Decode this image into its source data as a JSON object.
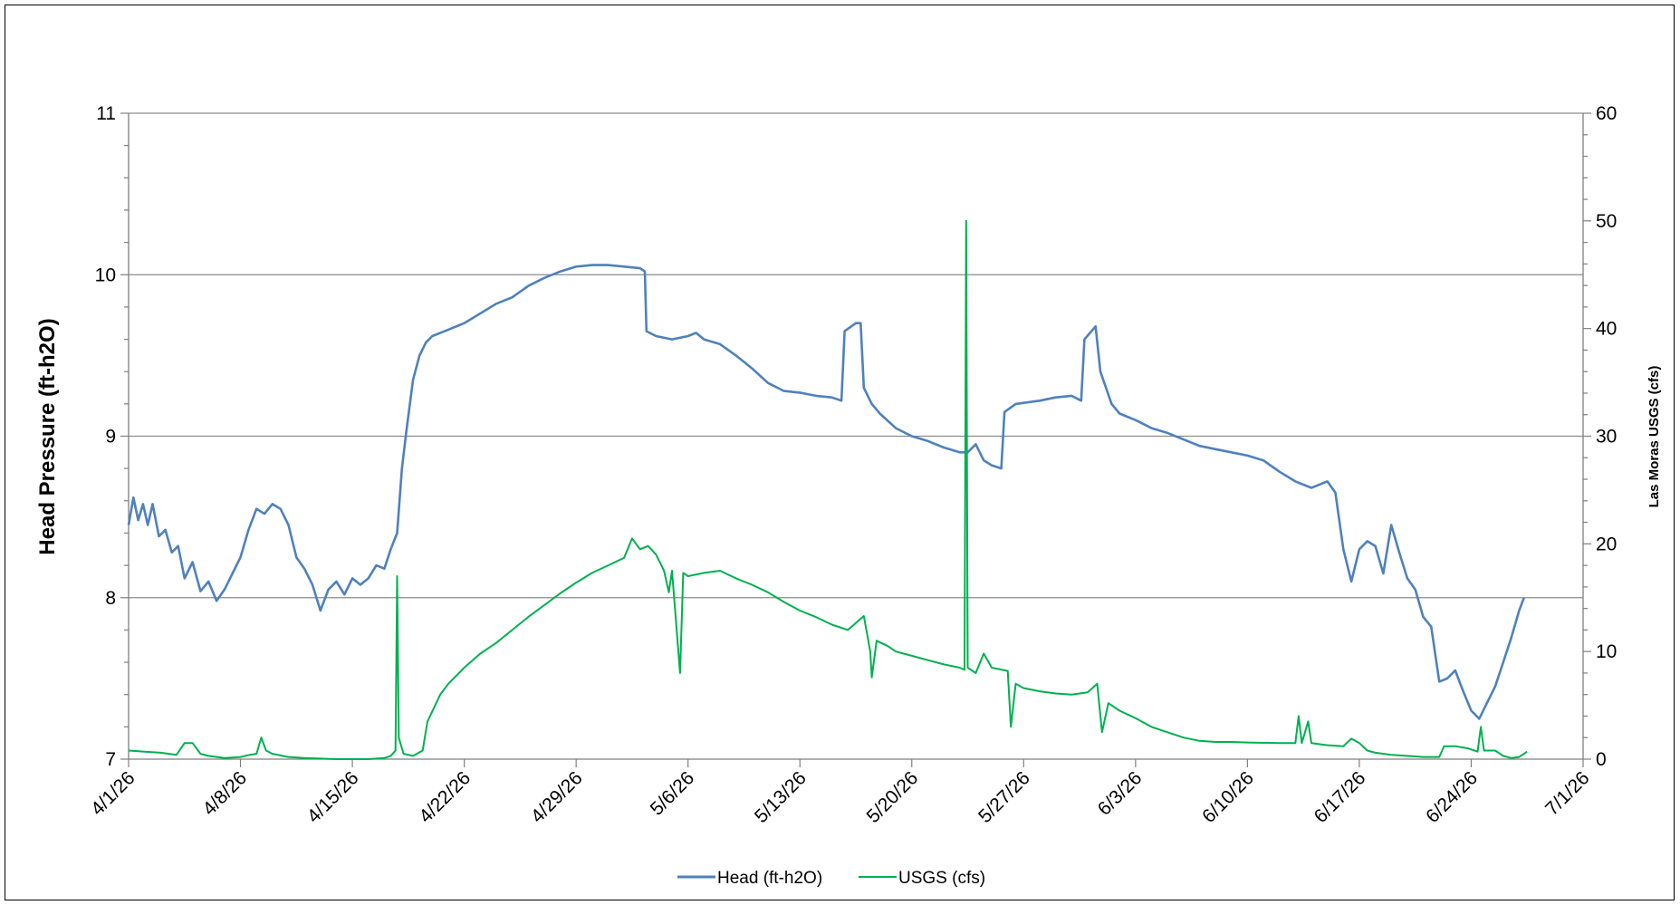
{
  "chart_data": {
    "type": "line",
    "title": "",
    "xlabel": "",
    "ylabel": "Head Pressure (ft-h2O)",
    "y2label": "Las Moras USGS (cfs)",
    "x_ticks": [
      "4/1/26",
      "4/8/26",
      "4/15/26",
      "4/22/26",
      "4/29/26",
      "5/6/26",
      "5/13/26",
      "5/20/26",
      "5/27/26",
      "6/3/26",
      "6/10/26",
      "6/17/26",
      "6/24/26",
      "7/1/26"
    ],
    "xlim_days": [
      0,
      91
    ],
    "ylim": [
      7,
      11
    ],
    "y_ticks": [
      "7",
      "8",
      "9",
      "10",
      "11"
    ],
    "y2lim": [
      0,
      60
    ],
    "y2_ticks": [
      "0",
      "10",
      "20",
      "30",
      "40",
      "50",
      "60"
    ],
    "grid": "horizontal major",
    "legend_position": "bottom",
    "series": [
      {
        "name": "Head (ft-h2O)",
        "axis": "left",
        "color": "#4F81BD",
        "points": [
          [
            0.0,
            8.45
          ],
          [
            0.3,
            8.62
          ],
          [
            0.6,
            8.48
          ],
          [
            0.9,
            8.58
          ],
          [
            1.2,
            8.45
          ],
          [
            1.5,
            8.58
          ],
          [
            1.9,
            8.38
          ],
          [
            2.3,
            8.42
          ],
          [
            2.7,
            8.28
          ],
          [
            3.1,
            8.32
          ],
          [
            3.5,
            8.12
          ],
          [
            4.0,
            8.22
          ],
          [
            4.5,
            8.04
          ],
          [
            5.0,
            8.1
          ],
          [
            5.5,
            7.98
          ],
          [
            6.0,
            8.05
          ],
          [
            6.5,
            8.15
          ],
          [
            7.0,
            8.25
          ],
          [
            7.5,
            8.42
          ],
          [
            8.0,
            8.55
          ],
          [
            8.5,
            8.52
          ],
          [
            9.0,
            8.58
          ],
          [
            9.5,
            8.55
          ],
          [
            10.0,
            8.45
          ],
          [
            10.5,
            8.25
          ],
          [
            11.0,
            8.18
          ],
          [
            11.5,
            8.08
          ],
          [
            12.0,
            7.92
          ],
          [
            12.5,
            8.05
          ],
          [
            13.0,
            8.1
          ],
          [
            13.5,
            8.02
          ],
          [
            14.0,
            8.12
          ],
          [
            14.5,
            8.08
          ],
          [
            15.0,
            8.12
          ],
          [
            15.5,
            8.2
          ],
          [
            16.0,
            8.18
          ],
          [
            16.4,
            8.3
          ],
          [
            16.8,
            8.4
          ],
          [
            17.1,
            8.8
          ],
          [
            17.4,
            9.05
          ],
          [
            17.8,
            9.35
          ],
          [
            18.2,
            9.5
          ],
          [
            18.6,
            9.58
          ],
          [
            19.0,
            9.62
          ],
          [
            20.0,
            9.66
          ],
          [
            21.0,
            9.7
          ],
          [
            22.0,
            9.76
          ],
          [
            23.0,
            9.82
          ],
          [
            24.0,
            9.86
          ],
          [
            25.0,
            9.93
          ],
          [
            26.0,
            9.98
          ],
          [
            27.0,
            10.02
          ],
          [
            28.0,
            10.05
          ],
          [
            29.0,
            10.06
          ],
          [
            30.0,
            10.06
          ],
          [
            31.0,
            10.05
          ],
          [
            32.0,
            10.04
          ],
          [
            32.3,
            10.02
          ],
          [
            32.4,
            9.65
          ],
          [
            33.0,
            9.62
          ],
          [
            34.0,
            9.6
          ],
          [
            35.0,
            9.62
          ],
          [
            35.5,
            9.64
          ],
          [
            36.0,
            9.6
          ],
          [
            37.0,
            9.57
          ],
          [
            38.0,
            9.5
          ],
          [
            39.0,
            9.42
          ],
          [
            40.0,
            9.33
          ],
          [
            41.0,
            9.28
          ],
          [
            42.0,
            9.27
          ],
          [
            43.0,
            9.25
          ],
          [
            44.0,
            9.24
          ],
          [
            44.6,
            9.22
          ],
          [
            44.8,
            9.65
          ],
          [
            45.5,
            9.7
          ],
          [
            45.8,
            9.7
          ],
          [
            46.0,
            9.3
          ],
          [
            46.5,
            9.2
          ],
          [
            47.0,
            9.14
          ],
          [
            48.0,
            9.05
          ],
          [
            49.0,
            9.0
          ],
          [
            50.0,
            8.97
          ],
          [
            51.0,
            8.93
          ],
          [
            52.0,
            8.9
          ],
          [
            52.5,
            8.9
          ],
          [
            53.0,
            8.95
          ],
          [
            53.5,
            8.85
          ],
          [
            54.0,
            8.82
          ],
          [
            54.6,
            8.8
          ],
          [
            54.8,
            9.15
          ],
          [
            55.5,
            9.2
          ],
          [
            57.0,
            9.22
          ],
          [
            58.0,
            9.24
          ],
          [
            59.0,
            9.25
          ],
          [
            59.6,
            9.22
          ],
          [
            59.8,
            9.6
          ],
          [
            60.5,
            9.68
          ],
          [
            60.8,
            9.4
          ],
          [
            61.5,
            9.2
          ],
          [
            62.0,
            9.14
          ],
          [
            63.0,
            9.1
          ],
          [
            64.0,
            9.05
          ],
          [
            65.0,
            9.02
          ],
          [
            66.0,
            8.98
          ],
          [
            67.0,
            8.94
          ],
          [
            68.0,
            8.92
          ],
          [
            69.0,
            8.9
          ],
          [
            70.0,
            8.88
          ],
          [
            71.0,
            8.85
          ],
          [
            72.0,
            8.78
          ],
          [
            73.0,
            8.72
          ],
          [
            74.0,
            8.68
          ],
          [
            75.0,
            8.72
          ],
          [
            75.5,
            8.65
          ],
          [
            76.0,
            8.3
          ],
          [
            76.5,
            8.1
          ],
          [
            77.0,
            8.3
          ],
          [
            77.5,
            8.35
          ],
          [
            78.0,
            8.32
          ],
          [
            78.5,
            8.15
          ],
          [
            79.0,
            8.45
          ],
          [
            79.5,
            8.28
          ],
          [
            80.0,
            8.12
          ],
          [
            80.5,
            8.05
          ],
          [
            81.0,
            7.88
          ],
          [
            81.5,
            7.82
          ],
          [
            82.0,
            7.48
          ],
          [
            82.5,
            7.5
          ],
          [
            83.0,
            7.55
          ],
          [
            83.5,
            7.42
          ],
          [
            84.0,
            7.3
          ],
          [
            84.5,
            7.25
          ],
          [
            85.0,
            7.35
          ],
          [
            85.5,
            7.45
          ],
          [
            86.0,
            7.6
          ],
          [
            86.5,
            7.75
          ],
          [
            87.0,
            7.92
          ],
          [
            87.3,
            8.0
          ]
        ]
      },
      {
        "name": "USGS (cfs)",
        "axis": "right",
        "color": "#00B050",
        "points": [
          [
            0.0,
            0.8
          ],
          [
            1.0,
            0.7
          ],
          [
            2.0,
            0.6
          ],
          [
            3.0,
            0.4
          ],
          [
            3.5,
            1.5
          ],
          [
            4.0,
            1.5
          ],
          [
            4.5,
            0.5
          ],
          [
            5.0,
            0.3
          ],
          [
            6.0,
            0.1
          ],
          [
            7.0,
            0.2
          ],
          [
            7.6,
            0.4
          ],
          [
            8.0,
            0.5
          ],
          [
            8.3,
            2.0
          ],
          [
            8.6,
            0.8
          ],
          [
            9.0,
            0.5
          ],
          [
            10.0,
            0.2
          ],
          [
            11.0,
            0.1
          ],
          [
            12.0,
            0.05
          ],
          [
            13.0,
            0.0
          ],
          [
            15.0,
            0.0
          ],
          [
            16.0,
            0.1
          ],
          [
            16.4,
            0.3
          ],
          [
            16.7,
            0.8
          ],
          [
            16.8,
            17.0
          ],
          [
            16.9,
            2.0
          ],
          [
            17.2,
            0.5
          ],
          [
            17.8,
            0.3
          ],
          [
            18.4,
            0.8
          ],
          [
            18.7,
            3.5
          ],
          [
            19.5,
            6.0
          ],
          [
            20.0,
            7.0
          ],
          [
            21.0,
            8.5
          ],
          [
            22.0,
            9.8
          ],
          [
            23.0,
            10.8
          ],
          [
            24.0,
            12.0
          ],
          [
            25.0,
            13.2
          ],
          [
            26.0,
            14.3
          ],
          [
            27.0,
            15.4
          ],
          [
            28.0,
            16.4
          ],
          [
            29.0,
            17.3
          ],
          [
            30.0,
            18.0
          ],
          [
            31.0,
            18.7
          ],
          [
            31.5,
            20.5
          ],
          [
            32.0,
            19.5
          ],
          [
            32.5,
            19.8
          ],
          [
            33.0,
            19.0
          ],
          [
            33.5,
            17.5
          ],
          [
            33.8,
            15.5
          ],
          [
            34.0,
            17.5
          ],
          [
            34.5,
            8.0
          ],
          [
            34.7,
            17.3
          ],
          [
            35.0,
            17.0
          ],
          [
            36.0,
            17.3
          ],
          [
            37.0,
            17.5
          ],
          [
            38.0,
            16.8
          ],
          [
            39.0,
            16.2
          ],
          [
            40.0,
            15.5
          ],
          [
            41.0,
            14.6
          ],
          [
            42.0,
            13.8
          ],
          [
            43.0,
            13.2
          ],
          [
            44.0,
            12.5
          ],
          [
            45.0,
            12.0
          ],
          [
            46.0,
            13.3
          ],
          [
            46.4,
            10.0
          ],
          [
            46.5,
            7.6
          ],
          [
            46.8,
            11.0
          ],
          [
            47.5,
            10.5
          ],
          [
            48.0,
            10.0
          ],
          [
            49.0,
            9.6
          ],
          [
            50.0,
            9.2
          ],
          [
            51.0,
            8.8
          ],
          [
            52.0,
            8.5
          ],
          [
            52.3,
            8.3
          ],
          [
            52.4,
            50.0
          ],
          [
            52.5,
            8.5
          ],
          [
            53.0,
            8.0
          ],
          [
            53.5,
            9.8
          ],
          [
            54.0,
            8.5
          ],
          [
            55.0,
            8.2
          ],
          [
            55.2,
            3.0
          ],
          [
            55.5,
            7.0
          ],
          [
            56.0,
            6.6
          ],
          [
            57.0,
            6.3
          ],
          [
            58.0,
            6.1
          ],
          [
            59.0,
            6.0
          ],
          [
            60.0,
            6.2
          ],
          [
            60.6,
            7.0
          ],
          [
            60.9,
            2.5
          ],
          [
            61.3,
            5.2
          ],
          [
            62.0,
            4.5
          ],
          [
            63.0,
            3.8
          ],
          [
            64.0,
            3.0
          ],
          [
            65.0,
            2.5
          ],
          [
            66.0,
            2.0
          ],
          [
            67.0,
            1.7
          ],
          [
            68.0,
            1.6
          ],
          [
            69.0,
            1.6
          ],
          [
            70.0,
            1.55
          ],
          [
            72.0,
            1.5
          ],
          [
            73.0,
            1.5
          ],
          [
            73.2,
            4.0
          ],
          [
            73.4,
            1.5
          ],
          [
            73.8,
            3.5
          ],
          [
            74.0,
            1.5
          ],
          [
            75.0,
            1.3
          ],
          [
            76.0,
            1.2
          ],
          [
            76.5,
            1.9
          ],
          [
            77.0,
            1.5
          ],
          [
            77.5,
            0.8
          ],
          [
            78.0,
            0.6
          ],
          [
            79.0,
            0.4
          ],
          [
            80.0,
            0.3
          ],
          [
            81.0,
            0.2
          ],
          [
            82.0,
            0.2
          ],
          [
            82.3,
            1.2
          ],
          [
            83.0,
            1.2
          ],
          [
            83.8,
            1.0
          ],
          [
            84.4,
            0.7
          ],
          [
            84.6,
            3.0
          ],
          [
            84.8,
            0.8
          ],
          [
            85.5,
            0.8
          ],
          [
            86.0,
            0.3
          ],
          [
            86.5,
            0.1
          ],
          [
            87.0,
            0.2
          ],
          [
            87.5,
            0.7
          ]
        ]
      }
    ]
  }
}
